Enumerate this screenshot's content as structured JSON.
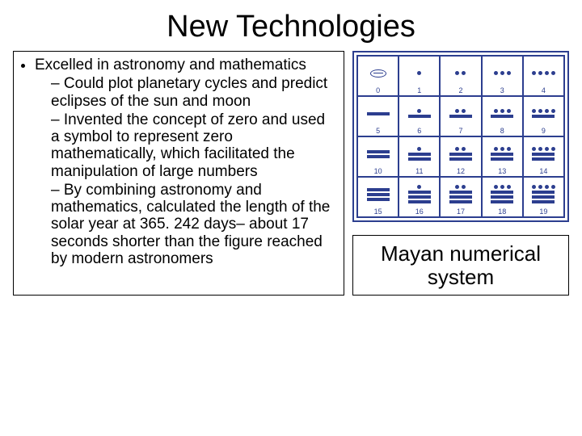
{
  "title": "New Technologies",
  "main_bullet": "Excelled in astronomy and mathematics",
  "sub_bullets": [
    "Could plot planetary cycles and predict eclipses of the sun and moon",
    "Invented the concept of zero and used a symbol to represent zero mathematically, which facilitated the manipulation of large numbers",
    "By combining astronomy and mathematics, calculated the length of the solar year at 365. 242 days– about 17 seconds shorter than the figure reached by modern astronomers"
  ],
  "caption": "Mayan numerical system",
  "numeral_chart": {
    "type": "table",
    "border_color": "#2c3e8f",
    "glyph_color": "#2c3e8f",
    "label_color": "#2c3e8f",
    "label_fontsize": 9,
    "background_color": "#ffffff",
    "columns": 5,
    "rows": 4,
    "cells": [
      {
        "value": 0,
        "label": "0",
        "dots": 0,
        "bars": 0,
        "shell": true
      },
      {
        "value": 1,
        "label": "1",
        "dots": 1,
        "bars": 0,
        "shell": false
      },
      {
        "value": 2,
        "label": "2",
        "dots": 2,
        "bars": 0,
        "shell": false
      },
      {
        "value": 3,
        "label": "3",
        "dots": 3,
        "bars": 0,
        "shell": false
      },
      {
        "value": 4,
        "label": "4",
        "dots": 4,
        "bars": 0,
        "shell": false
      },
      {
        "value": 5,
        "label": "5",
        "dots": 0,
        "bars": 1,
        "shell": false
      },
      {
        "value": 6,
        "label": "6",
        "dots": 1,
        "bars": 1,
        "shell": false
      },
      {
        "value": 7,
        "label": "7",
        "dots": 2,
        "bars": 1,
        "shell": false
      },
      {
        "value": 8,
        "label": "8",
        "dots": 3,
        "bars": 1,
        "shell": false
      },
      {
        "value": 9,
        "label": "9",
        "dots": 4,
        "bars": 1,
        "shell": false
      },
      {
        "value": 10,
        "label": "10",
        "dots": 0,
        "bars": 2,
        "shell": false
      },
      {
        "value": 11,
        "label": "11",
        "dots": 1,
        "bars": 2,
        "shell": false
      },
      {
        "value": 12,
        "label": "12",
        "dots": 2,
        "bars": 2,
        "shell": false
      },
      {
        "value": 13,
        "label": "13",
        "dots": 3,
        "bars": 2,
        "shell": false
      },
      {
        "value": 14,
        "label": "14",
        "dots": 4,
        "bars": 2,
        "shell": false
      },
      {
        "value": 15,
        "label": "15",
        "dots": 0,
        "bars": 3,
        "shell": false
      },
      {
        "value": 16,
        "label": "16",
        "dots": 1,
        "bars": 3,
        "shell": false
      },
      {
        "value": 17,
        "label": "17",
        "dots": 2,
        "bars": 3,
        "shell": false
      },
      {
        "value": 18,
        "label": "18",
        "dots": 3,
        "bars": 3,
        "shell": false
      },
      {
        "value": 19,
        "label": "19",
        "dots": 4,
        "bars": 3,
        "shell": false
      }
    ]
  }
}
